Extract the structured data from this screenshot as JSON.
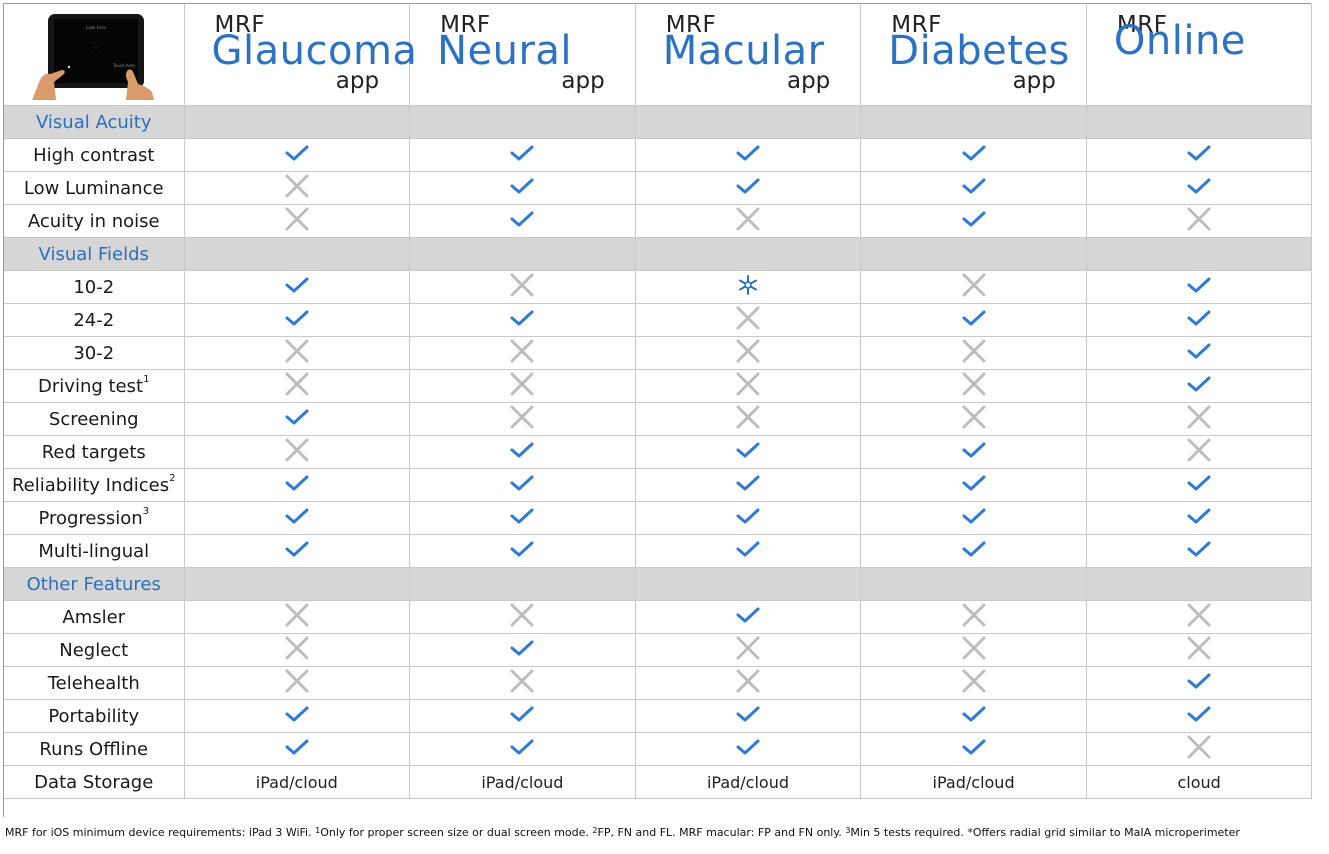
{
  "apps": [
    {
      "mrf": "MRF",
      "name": "Glaucoma",
      "suffix": "app"
    },
    {
      "mrf": "MRF",
      "name": "Neural",
      "suffix": "app"
    },
    {
      "mrf": "MRF",
      "name": "Macular",
      "suffix": "app"
    },
    {
      "mrf": "MRF",
      "name": "Diabetes",
      "suffix": "app"
    },
    {
      "mrf": "MRF",
      "name": "Online",
      "suffix": ""
    }
  ],
  "ipad": {
    "screen_top_text": "Look here",
    "screen_bottom_text": "Touch here"
  },
  "sections": [
    {
      "title": "Visual Acuity",
      "rows": [
        {
          "label": "High contrast",
          "sup": "",
          "values": [
            "check",
            "check",
            "check",
            "check",
            "check"
          ]
        },
        {
          "label": "Low Luminance",
          "sup": "",
          "values": [
            "cross",
            "check",
            "check",
            "check",
            "check"
          ]
        },
        {
          "label": "Acuity in noise",
          "sup": "",
          "values": [
            "cross",
            "check",
            "cross",
            "check",
            "cross"
          ]
        }
      ]
    },
    {
      "title": "Visual Fields",
      "rows": [
        {
          "label": "10-2",
          "sup": "",
          "values": [
            "check",
            "cross",
            "star",
            "cross",
            "check"
          ]
        },
        {
          "label": "24-2",
          "sup": "",
          "values": [
            "check",
            "check",
            "cross",
            "check",
            "check"
          ]
        },
        {
          "label": "30-2",
          "sup": "",
          "values": [
            "cross",
            "cross",
            "cross",
            "cross",
            "check"
          ]
        },
        {
          "label": "Driving test",
          "sup": "1",
          "values": [
            "cross",
            "cross",
            "cross",
            "cross",
            "check"
          ]
        },
        {
          "label": "Screening",
          "sup": "",
          "values": [
            "check",
            "cross",
            "cross",
            "cross",
            "cross"
          ]
        },
        {
          "label": "Red targets",
          "sup": "",
          "values": [
            "cross",
            "check",
            "check",
            "check",
            "cross"
          ]
        },
        {
          "label": "Reliability Indices",
          "sup": "2",
          "values": [
            "check",
            "check",
            "check",
            "check",
            "check"
          ]
        },
        {
          "label": "Progression",
          "sup": "3",
          "values": [
            "check",
            "check",
            "check",
            "check",
            "check"
          ]
        },
        {
          "label": "Multi-lingual",
          "sup": "",
          "values": [
            "check",
            "check",
            "check",
            "check",
            "check"
          ]
        }
      ]
    },
    {
      "title": "Other Features",
      "rows": [
        {
          "label": "Amsler",
          "sup": "",
          "values": [
            "cross",
            "cross",
            "check",
            "cross",
            "cross"
          ]
        },
        {
          "label": "Neglect",
          "sup": "",
          "values": [
            "cross",
            "check",
            "cross",
            "cross",
            "cross"
          ]
        },
        {
          "label": "Telehealth",
          "sup": "",
          "values": [
            "cross",
            "cross",
            "cross",
            "cross",
            "check"
          ]
        },
        {
          "label": "Portability",
          "sup": "",
          "values": [
            "check",
            "check",
            "check",
            "check",
            "check"
          ]
        },
        {
          "label": "Runs Offline",
          "sup": "",
          "values": [
            "check",
            "check",
            "check",
            "check",
            "cross"
          ]
        },
        {
          "label": "Data Storage",
          "sup": "",
          "values": [
            "iPad/cloud",
            "iPad/cloud",
            "iPad/cloud",
            "iPad/cloud",
            "cloud"
          ]
        }
      ]
    }
  ],
  "footer": {
    "p1": "MRF for iOS minimum device requirements: iPad 3 WiFi. ",
    "s1": "1",
    "p2": "Only for proper screen size or dual screen mode. ",
    "s2": "2",
    "p3": "FP, FN and FL. MRF macular: FP and FN only. ",
    "s3": "3",
    "p4": "Min 5 tests required. ",
    "p5": "*Offers radial grid similar to MaIA microperimeter"
  },
  "colors": {
    "accent": "#2b72c4",
    "check": "#2f7ad6",
    "cross": "#bdbdbd",
    "section_bg": "#d6d6d6"
  }
}
